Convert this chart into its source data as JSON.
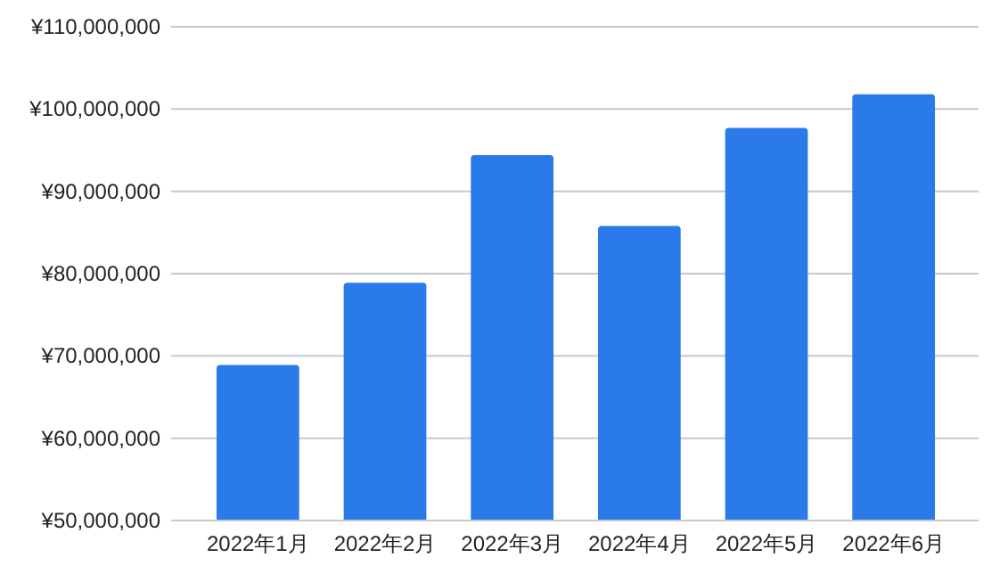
{
  "chart_data": {
    "type": "bar",
    "categories": [
      "2022年1月",
      "2022年2月",
      "2022年3月",
      "2022年4月",
      "2022年5月",
      "2022年6月"
    ],
    "values": [
      68900000,
      78900000,
      94400000,
      85800000,
      97700000,
      101800000
    ],
    "color": "#2a7ae9",
    "ylim": [
      50000000,
      110000000
    ],
    "yticks": [
      {
        "value": 50000000,
        "label": "¥50,000,000"
      },
      {
        "value": 60000000,
        "label": "¥60,000,000"
      },
      {
        "value": 70000000,
        "label": "¥70,000,000"
      },
      {
        "value": 80000000,
        "label": "¥80,000,000"
      },
      {
        "value": 90000000,
        "label": "¥90,000,000"
      },
      {
        "value": 100000000,
        "label": "¥100,000,000"
      },
      {
        "value": 110000000,
        "label": "¥110,000,000"
      }
    ],
    "grid": "y"
  }
}
